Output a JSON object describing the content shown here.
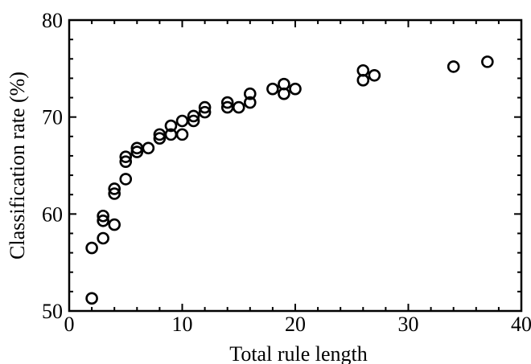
{
  "chart_data": {
    "type": "scatter",
    "title": "",
    "xlabel": "Total rule length",
    "ylabel": "Classification rate (%)",
    "xlim": [
      0,
      40
    ],
    "ylim": [
      50,
      80
    ],
    "xticks": [
      0,
      10,
      20,
      30,
      40
    ],
    "yticks": [
      50,
      60,
      70,
      80
    ],
    "grid": false,
    "marker": "open-circle",
    "colors": {
      "marker": "#000000",
      "axes": "#000000",
      "background": "#ffffff"
    },
    "x": [
      2,
      2,
      3,
      3,
      3,
      4,
      4,
      4,
      5,
      5,
      5,
      6,
      6,
      7,
      8,
      8,
      9,
      9,
      10,
      10,
      11,
      11,
      12,
      12,
      14,
      14,
      15,
      16,
      16,
      18,
      19,
      19,
      20,
      26,
      26,
      27,
      34,
      37
    ],
    "y": [
      51.3,
      56.5,
      57.5,
      59.3,
      59.8,
      58.9,
      62.1,
      62.6,
      63.6,
      65.4,
      65.9,
      66.4,
      66.8,
      66.8,
      67.8,
      68.2,
      68.2,
      69.1,
      68.2,
      69.6,
      69.6,
      70.1,
      70.5,
      71.0,
      71.0,
      71.5,
      71.0,
      71.5,
      72.4,
      72.9,
      72.4,
      73.4,
      72.9,
      73.8,
      74.8,
      74.3,
      75.2,
      75.7
    ]
  }
}
